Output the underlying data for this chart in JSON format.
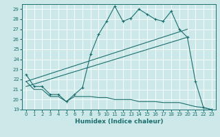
{
  "xlabel": "Humidex (Indice chaleur)",
  "ylabel": "",
  "bg_color": "#cde8e8",
  "grid_color": "#b8d8d8",
  "line_color": "#1a6e6e",
  "xlim": [
    -0.5,
    23.5
  ],
  "ylim": [
    19,
    29.5
  ],
  "xticks": [
    0,
    1,
    2,
    3,
    4,
    5,
    6,
    7,
    8,
    9,
    10,
    11,
    12,
    13,
    14,
    15,
    16,
    17,
    18,
    19,
    20,
    21,
    22,
    23
  ],
  "yticks": [
    19,
    20,
    21,
    22,
    23,
    24,
    25,
    26,
    27,
    28,
    29
  ],
  "series1_x": [
    0,
    1,
    2,
    3,
    4,
    5,
    6,
    7,
    8,
    9,
    10,
    11,
    12,
    13,
    14,
    15,
    16,
    17,
    18,
    19,
    20,
    21,
    22,
    23
  ],
  "series1_y": [
    22.5,
    21.3,
    21.3,
    20.5,
    20.5,
    19.8,
    20.5,
    21.2,
    24.5,
    26.5,
    27.8,
    29.3,
    27.8,
    28.1,
    29.0,
    28.5,
    28.0,
    27.8,
    28.8,
    27.0,
    26.2,
    21.8,
    19.2,
    19.0
  ],
  "series2_x": [
    0,
    20
  ],
  "series2_y": [
    21.8,
    27.0
  ],
  "series3_x": [
    0,
    20
  ],
  "series3_y": [
    21.3,
    26.2
  ],
  "series4_x": [
    0,
    1,
    2,
    3,
    4,
    5,
    6,
    7,
    8,
    9,
    10,
    11,
    12,
    13,
    14,
    15,
    16,
    17,
    18,
    19,
    20,
    21,
    22,
    23
  ],
  "series4_y": [
    21.8,
    21.0,
    21.0,
    20.3,
    20.3,
    19.8,
    20.3,
    20.3,
    20.3,
    20.2,
    20.2,
    20.0,
    20.0,
    20.0,
    19.8,
    19.8,
    19.8,
    19.7,
    19.7,
    19.7,
    19.5,
    19.3,
    19.2,
    19.0
  ]
}
